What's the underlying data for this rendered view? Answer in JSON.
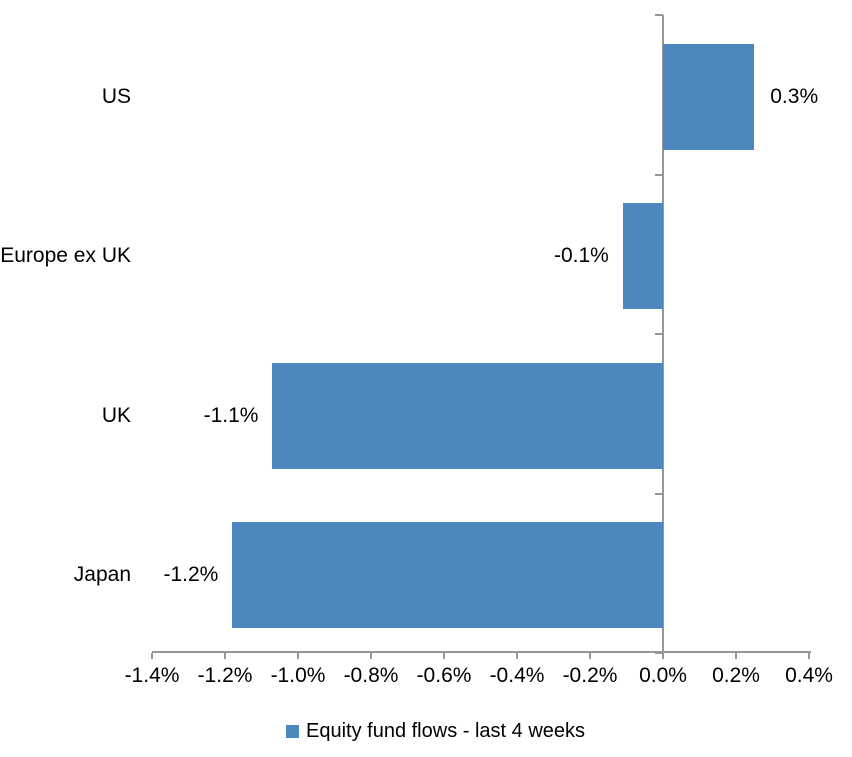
{
  "chart_data": {
    "type": "bar",
    "orientation": "horizontal",
    "title": "",
    "xlabel": "",
    "ylabel": "",
    "grid": false,
    "categories": [
      "US",
      "Europe ex UK",
      "UK",
      "Japan"
    ],
    "series": [
      {
        "name": "Equity fund flows - last 4 weeks",
        "values": [
          0.3,
          -0.1,
          -1.1,
          -1.2
        ],
        "values_precise": [
          0.25,
          -0.11,
          -1.07,
          -1.18
        ],
        "data_labels": [
          "0.3%",
          "-0.1%",
          "-1.1%",
          "-1.2%"
        ],
        "color": "#4E87BD"
      }
    ],
    "x_axis": {
      "min": -1.4,
      "max": 0.4,
      "tick_step": 0.2,
      "tick_labels": [
        "-1.4%",
        "-1.2%",
        "-1.0%",
        "-0.8%",
        "-0.6%",
        "-0.4%",
        "-0.2%",
        "0.0%",
        "0.2%",
        "0.4%"
      ]
    },
    "legend": {
      "position": "bottom",
      "entries": [
        {
          "label": "Equity fund flows - last 4 weeks",
          "color": "#4E87BD"
        }
      ]
    },
    "colors": {
      "axis": "#969696",
      "text": "#000000",
      "background": "#FFFFFF"
    }
  }
}
